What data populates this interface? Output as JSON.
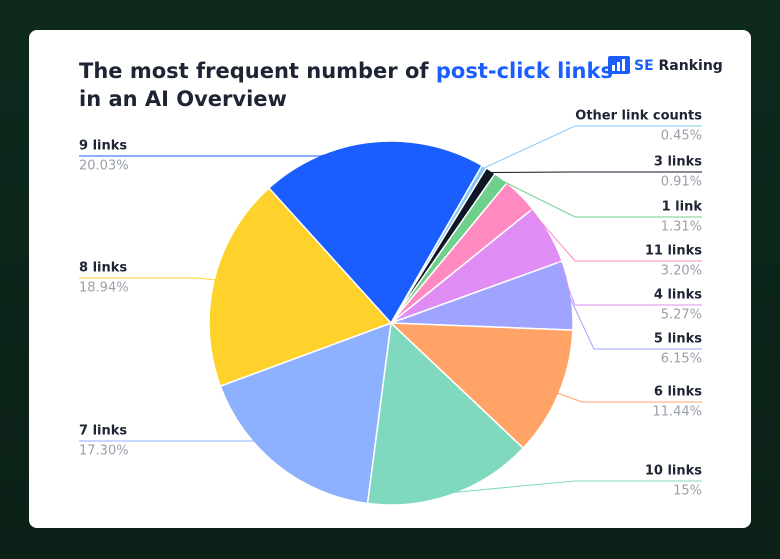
{
  "chart_data": {
    "type": "pie",
    "title_parts": [
      "The most frequent number of",
      "post-click links",
      "in an AI Overview"
    ],
    "brand": [
      "SE",
      "Ranking"
    ],
    "categories": [
      "Other link counts",
      "3 links",
      "1 link",
      "11 links",
      "4 links",
      "5 links",
      "6 links",
      "10 links",
      "7 links",
      "8 links",
      "9 links"
    ],
    "values": [
      0.45,
      0.91,
      1.31,
      3.2,
      5.27,
      6.15,
      11.44,
      15,
      17.3,
      18.94,
      20.03
    ],
    "value_labels": [
      "0.45%",
      "0.91%",
      "1.31%",
      "3.20%",
      "5.27%",
      "6.15%",
      "11.44%",
      "15%",
      "17.30%",
      "18.94%",
      "20.03%"
    ],
    "colors": [
      "#86c8f2",
      "#0f1626",
      "#6fd08c",
      "#ff8ac2",
      "#e08cf5",
      "#9ea4ff",
      "#ffa366",
      "#80d9bf",
      "#8db0ff",
      "#ffd12b",
      "#1a5eff"
    ]
  }
}
